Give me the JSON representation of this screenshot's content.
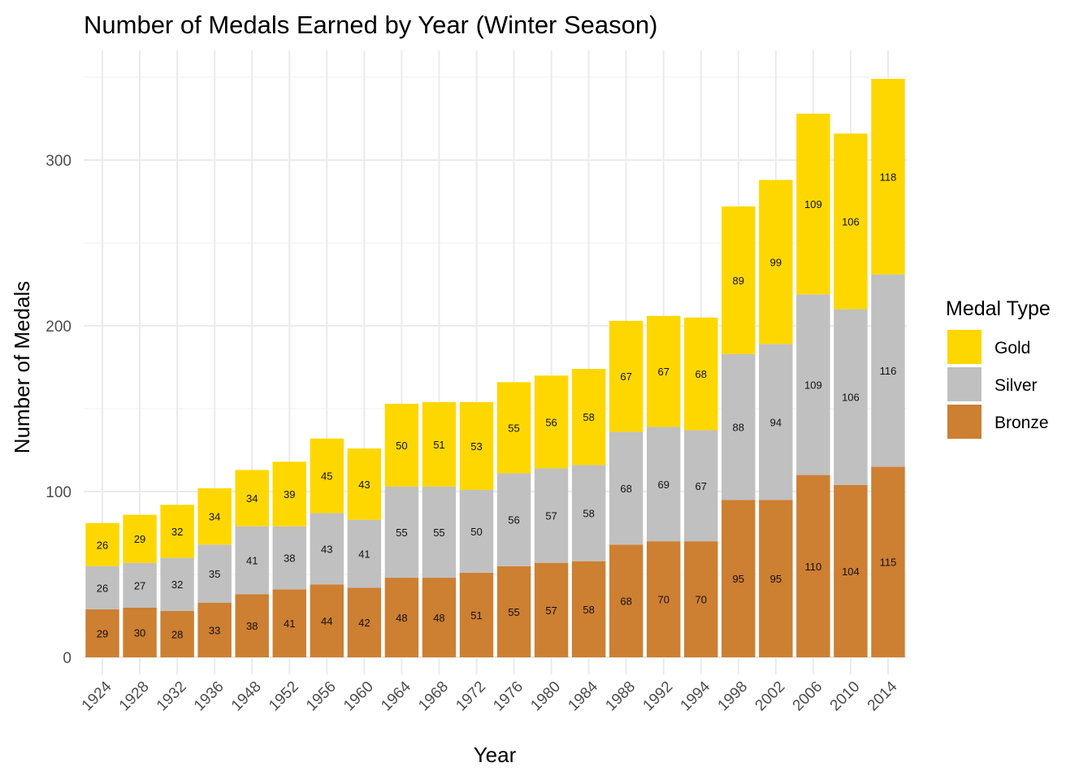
{
  "chart_data": {
    "type": "bar",
    "stacked": true,
    "title": "Number of Medals Earned by Year (Winter Season)",
    "xlabel": "Year",
    "ylabel": "Number of Medals",
    "ylim": [
      0,
      350
    ],
    "yticks": [
      0,
      100,
      200,
      300
    ],
    "grid": true,
    "legend_position": "right",
    "legend_title": "Medal Type",
    "categories": [
      "1924",
      "1928",
      "1932",
      "1936",
      "1948",
      "1952",
      "1956",
      "1960",
      "1964",
      "1968",
      "1972",
      "1976",
      "1980",
      "1984",
      "1988",
      "1992",
      "1994",
      "1998",
      "2002",
      "2006",
      "2010",
      "2014"
    ],
    "series": [
      {
        "name": "Bronze",
        "color": "#CD7F32",
        "values": [
          29,
          30,
          28,
          33,
          38,
          41,
          44,
          42,
          48,
          48,
          51,
          55,
          57,
          58,
          68,
          70,
          70,
          95,
          95,
          110,
          104,
          115
        ]
      },
      {
        "name": "Silver",
        "color": "#C0C0C0",
        "values": [
          26,
          27,
          32,
          35,
          41,
          38,
          43,
          41,
          55,
          55,
          50,
          56,
          57,
          58,
          68,
          69,
          67,
          88,
          94,
          109,
          106,
          116
        ]
      },
      {
        "name": "Gold",
        "color": "#FFD700",
        "values": [
          26,
          29,
          32,
          34,
          34,
          39,
          45,
          43,
          50,
          51,
          53,
          55,
          56,
          58,
          67,
          67,
          68,
          89,
          99,
          109,
          106,
          118
        ]
      }
    ],
    "legend_order": [
      "Gold",
      "Silver",
      "Bronze"
    ]
  }
}
